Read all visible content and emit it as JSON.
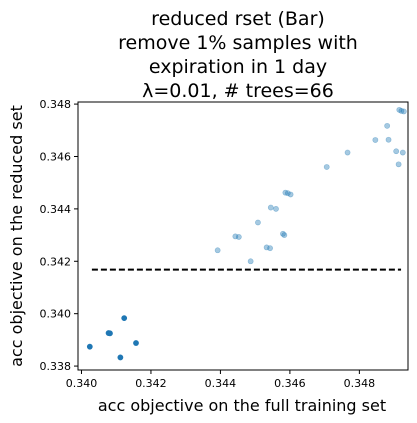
{
  "chart_data": {
    "type": "scatter",
    "title_lines": [
      "reduced rset (Bar)",
      "remove 1% samples with",
      "expiration in 1 day",
      "λ=0.01, # trees=66"
    ],
    "xlabel": "acc objective on the full training set",
    "ylabel": "acc objective on the reduced set",
    "xlim": [
      0.3399,
      0.3494
    ],
    "ylim": [
      0.33785,
      0.34808
    ],
    "xticks": [
      {
        "value": 0.34,
        "label": "0.340"
      },
      {
        "value": 0.342,
        "label": "0.342"
      },
      {
        "value": 0.344,
        "label": "0.344"
      },
      {
        "value": 0.346,
        "label": "0.346"
      },
      {
        "value": 0.348,
        "label": "0.348"
      }
    ],
    "yticks": [
      {
        "value": 0.338,
        "label": "0.338"
      },
      {
        "value": 0.34,
        "label": "0.340"
      },
      {
        "value": 0.342,
        "label": "0.342"
      },
      {
        "value": 0.344,
        "label": "0.344"
      },
      {
        "value": 0.346,
        "label": "0.346"
      },
      {
        "value": 0.348,
        "label": "0.348"
      }
    ],
    "grid": false,
    "reference_line": {
      "y": 0.34168,
      "x_range": [
        0.3403,
        0.3492
      ],
      "style": "dashed",
      "color": "#000000"
    },
    "marker_color": "#1f77b4",
    "series": [
      {
        "alpha": 1.0,
        "points": [
          [
            0.34024,
            0.33874
          ],
          [
            0.34078,
            0.33926
          ],
          [
            0.34082,
            0.33925
          ],
          [
            0.34123,
            0.33983
          ],
          [
            0.34112,
            0.33833
          ],
          [
            0.34157,
            0.33888
          ]
        ]
      },
      {
        "alpha": 0.4,
        "points": [
          [
            0.34392,
            0.34242
          ],
          [
            0.34443,
            0.34295
          ],
          [
            0.34453,
            0.34293
          ],
          [
            0.34487,
            0.342
          ],
          [
            0.34508,
            0.34348
          ],
          [
            0.34533,
            0.34253
          ],
          [
            0.34543,
            0.3425
          ],
          [
            0.34545,
            0.34405
          ],
          [
            0.3456,
            0.344
          ],
          [
            0.3458,
            0.34305
          ],
          [
            0.34584,
            0.343
          ],
          [
            0.34587,
            0.34462
          ],
          [
            0.34594,
            0.3446
          ],
          [
            0.34602,
            0.34455
          ],
          [
            0.34706,
            0.3456
          ],
          [
            0.34766,
            0.34615
          ],
          [
            0.34846,
            0.34663
          ],
          [
            0.3488,
            0.34717
          ],
          [
            0.34884,
            0.34664
          ],
          [
            0.34906,
            0.3462
          ],
          [
            0.34913,
            0.3457
          ],
          [
            0.34915,
            0.34778
          ],
          [
            0.34921,
            0.34774
          ],
          [
            0.34925,
            0.34615
          ],
          [
            0.34928,
            0.34772
          ]
        ]
      }
    ]
  }
}
